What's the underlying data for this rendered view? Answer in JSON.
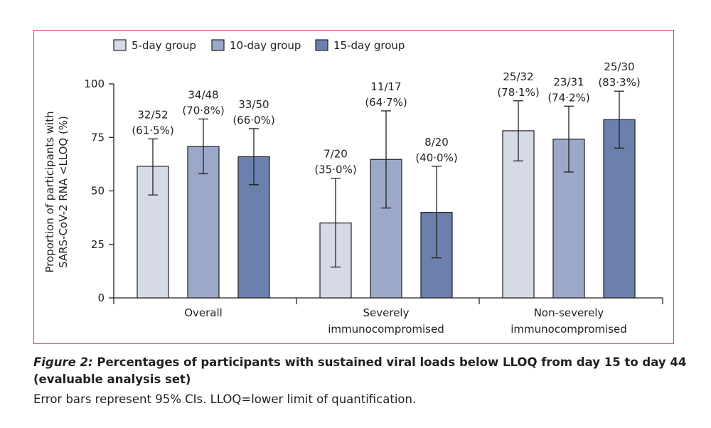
{
  "chart_data": {
    "type": "bar",
    "ylabel": [
      "Proportion of participants with",
      "SARS-CoV-2 RNA <LLOQ (%)"
    ],
    "ylim": [
      0,
      100
    ],
    "yticks": [
      0,
      25,
      50,
      75,
      100
    ],
    "legend_position": "top-left",
    "categories": [
      [
        "Overall"
      ],
      [
        "Severely",
        "immunocompromised"
      ],
      [
        "Non-severely",
        "immunocompromised"
      ]
    ],
    "series": [
      {
        "name": "5-day group",
        "color": "#d5dae6",
        "values": [
          61.5,
          35.0,
          78.1
        ],
        "ci_low": [
          48.1,
          14.4,
          64.0
        ],
        "ci_high": [
          74.3,
          55.9,
          92.1
        ],
        "labels": [
          [
            "32/52",
            "(61·5%)"
          ],
          [
            "7/20",
            "(35·0%)"
          ],
          [
            "25/32",
            "(78·1%)"
          ]
        ]
      },
      {
        "name": "10-day group",
        "color": "#9ba8c9",
        "values": [
          70.8,
          64.7,
          74.2
        ],
        "ci_low": [
          58.0,
          42.0,
          58.8
        ],
        "ci_high": [
          83.6,
          87.4,
          89.6
        ],
        "labels": [
          [
            "34/48",
            "(70·8%)"
          ],
          [
            "11/17",
            "(64·7%)"
          ],
          [
            "23/31",
            "(74·2%)"
          ]
        ]
      },
      {
        "name": "15-day group",
        "color": "#6b80ad",
        "values": [
          66.0,
          40.0,
          83.3
        ],
        "ci_low": [
          52.9,
          18.7,
          70.0
        ],
        "ci_high": [
          79.1,
          61.5,
          96.6
        ],
        "labels": [
          [
            "33/50",
            "(66·0%)"
          ],
          [
            "8/20",
            "(40·0%)"
          ],
          [
            "25/30",
            "(83·3%)"
          ]
        ]
      }
    ]
  },
  "caption": {
    "figure_label": "Figure 2:",
    "title": " Percentages of participants with sustained viral loads below LLOQ from day 15 to day 44 (evaluable analysis set)",
    "note": "Error bars represent 95% CIs. LLOQ=lower limit of quantification."
  }
}
